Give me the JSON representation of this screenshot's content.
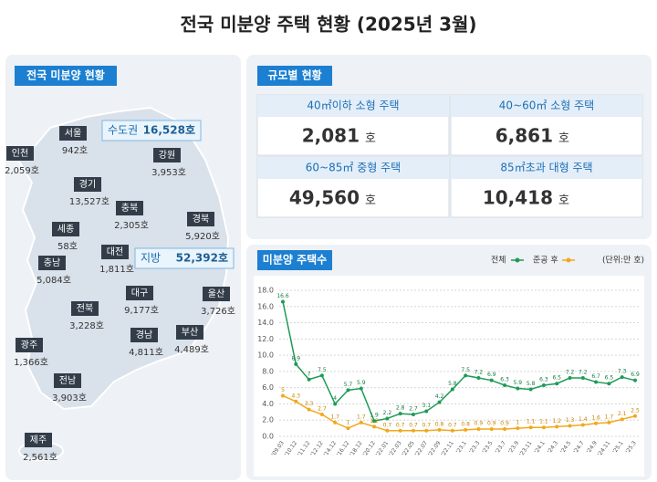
{
  "title": "전국 미분양 주택 현황  (2025년 3월)",
  "map": {
    "header": "전국 미분양 현황",
    "regions": [
      {
        "name": "인천",
        "count": "2,059호"
      },
      {
        "name": "서울",
        "count": "942호"
      },
      {
        "name": "강원",
        "count": "3,953호"
      },
      {
        "name": "경기",
        "count": "13,527호"
      },
      {
        "name": "충북",
        "count": "2,305호"
      },
      {
        "name": "경북",
        "count": "5,920호"
      },
      {
        "name": "세종",
        "count": "58호"
      },
      {
        "name": "대전",
        "count": "1,811호"
      },
      {
        "name": "충남",
        "count": "5,084호"
      },
      {
        "name": "대구",
        "count": "9,177호"
      },
      {
        "name": "울산",
        "count": "3,726호"
      },
      {
        "name": "전북",
        "count": "3,228호"
      },
      {
        "name": "경남",
        "count": "4,811호"
      },
      {
        "name": "부산",
        "count": "4,489호"
      },
      {
        "name": "광주",
        "count": "1,366호"
      },
      {
        "name": "전남",
        "count": "3,903호"
      },
      {
        "name": "제주",
        "count": "2,561호"
      }
    ],
    "callouts": [
      {
        "name": "수도권",
        "count": "16,528호"
      },
      {
        "name": "지방",
        "count": "52,392호"
      }
    ]
  },
  "size_panel": {
    "header": "규모별 현황",
    "cells": [
      {
        "label": "40㎡이하 소형 주택",
        "value": "2,081",
        "unit": "호"
      },
      {
        "label": "40~60㎡ 소형 주택",
        "value": "6,861",
        "unit": "호"
      },
      {
        "label": "60~85㎡ 중형 주택",
        "value": "49,560",
        "unit": "호"
      },
      {
        "label": "85㎡초과 대형 주택",
        "value": "10,418",
        "unit": "호"
      }
    ]
  },
  "chart_data": {
    "type": "line",
    "title": "미분양 주택수",
    "unit": "(단위:만 호)",
    "categories": [
      "'09.03",
      "'10.12",
      "'11.12",
      "'12.12",
      "'14.12",
      "'16.12",
      "'18.12",
      "'20.12",
      "'22.01",
      "'22.03",
      "'22.05",
      "'22.07",
      "'22.09",
      "'22.11",
      "'23.1",
      "'23.3",
      "'23.5",
      "'23.7",
      "'23.9",
      "'23.11",
      "'24.1",
      "'24.3",
      "'24.5",
      "'24.7",
      "'24.9",
      "'24.11",
      "'25.1",
      "'25.3"
    ],
    "series": [
      {
        "name": "전체",
        "color": "#1e9b57",
        "values": [
          16.6,
          8.9,
          7.0,
          7.5,
          4.0,
          5.7,
          5.9,
          1.9,
          2.2,
          2.8,
          2.7,
          3.1,
          4.2,
          5.8,
          7.5,
          7.2,
          6.9,
          6.3,
          5.9,
          5.8,
          6.3,
          6.5,
          7.2,
          7.2,
          6.7,
          6.5,
          7.3,
          6.9
        ]
      },
      {
        "name": "준공 후",
        "color": "#f2a81d",
        "values": [
          5.0,
          4.3,
          3.3,
          2.7,
          1.7,
          1.0,
          1.7,
          1.2,
          0.7,
          0.7,
          0.7,
          0.7,
          0.8,
          0.7,
          0.8,
          0.9,
          0.9,
          0.9,
          1.0,
          1.1,
          1.1,
          1.2,
          1.3,
          1.4,
          1.6,
          1.7,
          2.1,
          2.5
        ]
      }
    ],
    "ylim": [
      0,
      18
    ],
    "yticks": [
      {
        "value": 0,
        "label": "0.0"
      },
      {
        "value": 2,
        "label": "2.0"
      },
      {
        "value": 4,
        "label": "4.0"
      },
      {
        "value": 6,
        "label": "6.0"
      },
      {
        "value": 8,
        "label": "8.0"
      },
      {
        "value": 10,
        "label": "10.0"
      },
      {
        "value": 12,
        "label": "12.0"
      },
      {
        "value": 14,
        "label": "14.0"
      },
      {
        "value": 16,
        "label": "16.0"
      },
      {
        "value": 18,
        "label": "18.0"
      }
    ],
    "grid": true
  }
}
